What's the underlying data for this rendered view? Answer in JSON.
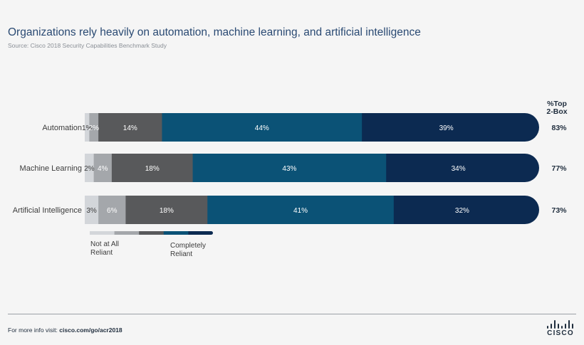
{
  "header": {
    "title": "Organizations rely heavily on automation, machine learning, and artificial intelligence",
    "subtitle": "Source: Cisco 2018 Security Capabilities Benchmark Study"
  },
  "footer": {
    "prefix": "For more info visit: ",
    "link": "cisco.com/go/acr2018",
    "logo_word": "CISCO"
  },
  "chart_data": {
    "type": "bar",
    "orientation": "horizontal",
    "stacked": true,
    "categories": [
      "Automation",
      "Machine Learning",
      "Artificial Intelligence"
    ],
    "series": [
      {
        "values": [
          1,
          2,
          3
        ],
        "color": "#d3d6da",
        "label_color": "#3c3c3c"
      },
      {
        "values": [
          2,
          4,
          6
        ],
        "color": "#a4a7ab",
        "label_color": "#ffffff"
      },
      {
        "values": [
          14,
          18,
          18
        ],
        "color": "#58595b",
        "label_color": "#ffffff"
      },
      {
        "values": [
          44,
          43,
          41
        ],
        "color": "#0b5276",
        "label_color": "#ffffff"
      },
      {
        "values": [
          39,
          34,
          32
        ],
        "color": "#0c2a51",
        "label_color": "#ffffff"
      }
    ],
    "data_labels": [
      [
        "1%",
        "2%",
        "14%",
        "44%",
        "39%"
      ],
      [
        "2%",
        "4%",
        "18%",
        "43%",
        "34%"
      ],
      [
        "3%",
        "6%",
        "18%",
        "41%",
        "32%"
      ]
    ],
    "top2_header": [
      "%Top",
      "2-Box"
    ],
    "top2_labels": [
      "83%",
      "77%",
      "73%"
    ],
    "legend": {
      "placement": "bottom-left",
      "left_label": [
        "Not at All",
        "Reliant"
      ],
      "right_label": [
        "Completely",
        "Reliant"
      ]
    }
  }
}
